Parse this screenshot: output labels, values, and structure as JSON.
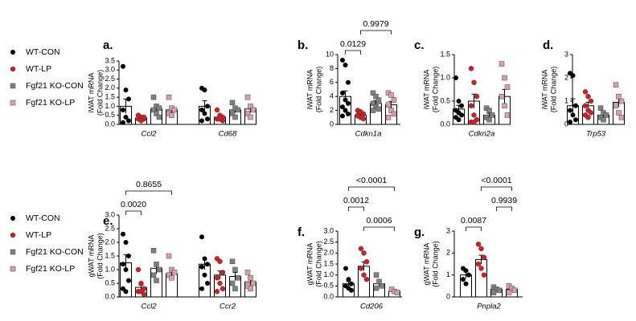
{
  "chart_data": [
    {
      "type": "bar",
      "title": "a.",
      "ylabel": [
        "iWAT mRNA",
        "(Fold Change)"
      ],
      "categories": [
        "Ccl2",
        "Cd68"
      ],
      "ylim": [
        0,
        3.5
      ],
      "yticks": [
        {
          "value": 0,
          "label": "0.0"
        },
        {
          "value": 0.5,
          "label": "0.5"
        },
        {
          "value": 1,
          "label": "1.0"
        },
        {
          "value": 1.5,
          "label": "1.5"
        },
        {
          "value": 2,
          "label": "2.0"
        },
        {
          "value": 2.5,
          "label": "2.5"
        },
        {
          "value": 3,
          "label": "3.0"
        },
        {
          "value": 3.5,
          "label": "3.5"
        }
      ],
      "series": [
        {
          "name": "WT-CON",
          "color": "#000000",
          "values": [
            1.0,
            1.0
          ],
          "errors": [
            0.4,
            0.3
          ],
          "points": [
            [
              3.2,
              1.9,
              1.4,
              0.8,
              0.4,
              0.2,
              0.1
            ],
            [
              2.0,
              1.9,
              1.0,
              0.8,
              0.6,
              0.3,
              0.2
            ]
          ]
        },
        {
          "name": "WT-LP",
          "color": "#c0262d",
          "values": [
            0.35,
            0.4
          ],
          "errors": [
            0.1,
            0.1
          ],
          "points": [
            [
              0.5,
              0.4,
              0.3,
              0.3,
              0.2,
              0.4,
              0.5
            ],
            [
              0.8,
              0.5,
              0.4,
              0.3,
              0.3,
              0.2
            ]
          ]
        },
        {
          "name": "Fgf21 KO-CON",
          "color": "#808080",
          "values": [
            0.85,
            0.8
          ],
          "errors": [
            0.15,
            0.15
          ],
          "points": [
            [
              1.5,
              1.0,
              0.9,
              0.8,
              0.6,
              0.4
            ],
            [
              1.2,
              0.9,
              0.8,
              0.6,
              0.4
            ]
          ]
        },
        {
          "name": "Fgf21 KO-LP",
          "color": "#d9a0a8",
          "values": [
            0.8,
            0.85
          ],
          "errors": [
            0.15,
            0.2
          ],
          "points": [
            [
              1.5,
              0.9,
              0.8,
              0.6,
              0.5
            ],
            [
              1.5,
              1.0,
              0.8,
              0.6,
              0.4
            ]
          ]
        }
      ]
    },
    {
      "type": "bar",
      "title": "b.",
      "ylabel": [
        "iWAT mRNA",
        "(Fold Change)"
      ],
      "categories": [
        "Cdkn1a"
      ],
      "ylim": [
        0,
        10
      ],
      "yticks": [
        0,
        2,
        4,
        6,
        8,
        10
      ],
      "series": [
        {
          "color": "#000000",
          "values": [
            4.0
          ],
          "errors": [
            0.8
          ],
          "points": [
            [
              9.2,
              8.5,
              6,
              4.5,
              3.5,
              3,
              2.5,
              2,
              1.5,
              1.2
            ]
          ]
        },
        {
          "color": "#c0262d",
          "values": [
            1.3
          ],
          "errors": [
            0.2
          ],
          "points": [
            [
              2,
              1.8,
              1.5,
              1.3,
              1.0,
              0.8,
              1.2
            ]
          ]
        },
        {
          "color": "#808080",
          "values": [
            3.0
          ],
          "errors": [
            0.4
          ],
          "points": [
            [
              4.5,
              4,
              3.5,
              3,
              2.5,
              2.2,
              2
            ]
          ]
        },
        {
          "color": "#d9a0a8",
          "values": [
            2.8
          ],
          "errors": [
            0.5
          ],
          "points": [
            [
              4.5,
              4.2,
              3.5,
              2.8,
              2,
              1.5,
              1
            ]
          ]
        }
      ],
      "annotations": [
        {
          "text": "0.0129",
          "groups": [
            0,
            1
          ]
        },
        {
          "text": "0.9979",
          "groups": [
            1,
            3
          ]
        }
      ]
    },
    {
      "type": "bar",
      "title": "c.",
      "ylabel": [
        "iWAT mRNA",
        "(Fold Change)"
      ],
      "categories": [
        "Cdkn2a"
      ],
      "ylim": [
        0,
        1.5
      ],
      "yticks": [
        {
          "value": 0,
          "label": "0.0"
        },
        {
          "value": 0.5,
          "label": "0.5"
        },
        {
          "value": 1,
          "label": "1.0"
        },
        {
          "value": 1.5,
          "label": "1.5"
        }
      ],
      "series": [
        {
          "color": "#000000",
          "values": [
            0.33
          ],
          "errors": [
            0.08
          ],
          "points": [
            [
              1.0,
              0.5,
              0.4,
              0.3,
              0.25,
              0.2,
              0.15,
              0.1
            ]
          ]
        },
        {
          "color": "#c0262d",
          "values": [
            0.5
          ],
          "errors": [
            0.15
          ],
          "points": [
            [
              1.2,
              0.9,
              0.6,
              0.4,
              0.2,
              0.1,
              0.05,
              0.05
            ]
          ]
        },
        {
          "color": "#808080",
          "values": [
            0.2
          ],
          "errors": [
            0.04
          ],
          "points": [
            [
              0.35,
              0.3,
              0.2,
              0.15,
              0.1
            ]
          ]
        },
        {
          "color": "#d9a0a8",
          "values": [
            0.6
          ],
          "errors": [
            0.15
          ],
          "points": [
            [
              1.3,
              1.0,
              0.8,
              0.6,
              0.4,
              0.2
            ]
          ]
        }
      ]
    },
    {
      "type": "bar",
      "title": "d.",
      "ylabel": [
        "iWAT mRNA",
        "(Fold Change)"
      ],
      "categories": [
        "Trp53"
      ],
      "ylim": [
        0,
        3
      ],
      "yticks": [
        0,
        1,
        2,
        3
      ],
      "series": [
        {
          "color": "#000000",
          "values": [
            0.8
          ],
          "errors": [
            0.3
          ],
          "points": [
            [
              2.2,
              2.1,
              0.8,
              0.6,
              0.4,
              0.2,
              0.1
            ]
          ]
        },
        {
          "color": "#c0262d",
          "values": [
            0.8
          ],
          "errors": [
            0.15
          ],
          "points": [
            [
              1.4,
              1.2,
              1.0,
              0.8,
              0.6,
              0.5,
              0.4,
              0.3
            ]
          ]
        },
        {
          "color": "#808080",
          "values": [
            0.4
          ],
          "errors": [
            0.1
          ],
          "points": [
            [
              0.7,
              0.5,
              0.4,
              0.3,
              0.2
            ]
          ]
        },
        {
          "color": "#d9a0a8",
          "values": [
            0.95
          ],
          "errors": [
            0.2
          ],
          "points": [
            [
              1.7,
              1.2,
              1.0,
              0.8,
              0.5,
              0.3
            ]
          ]
        }
      ]
    },
    {
      "type": "bar",
      "title": "e.",
      "ylabel": [
        "gWAT mRNA",
        "(Fold Change)"
      ],
      "categories": [
        "Ccl2",
        "Ccr2"
      ],
      "ylim": [
        0,
        3
      ],
      "yticks": [
        {
          "value": 0,
          "label": "0.0"
        },
        {
          "value": 0.5,
          "label": "0.5"
        },
        {
          "value": 1,
          "label": "1.0"
        },
        {
          "value": 1.5,
          "label": "1.5"
        },
        {
          "value": 2,
          "label": "2.0"
        },
        {
          "value": 2.5,
          "label": "2.5"
        },
        {
          "value": 3,
          "label": "3.0"
        }
      ],
      "series": [
        {
          "name": "WT-CON",
          "color": "#000000",
          "values": [
            1.25,
            1.2
          ],
          "errors": [
            0.3,
            0.2
          ],
          "points": [
            [
              2.3,
              2.0,
              1.5,
              1.2,
              1.0,
              0.6,
              0.3,
              0.2
            ],
            [
              2.2,
              1.4,
              1.2,
              1.1,
              0.8,
              0.5,
              0.3
            ]
          ]
        },
        {
          "name": "WT-LP",
          "color": "#c0262d",
          "values": [
            0.35,
            0.8
          ],
          "errors": [
            0.08,
            0.15
          ],
          "points": [
            [
              1.0,
              0.5,
              0.3,
              0.2,
              0.2,
              0.1
            ],
            [
              1.4,
              1.3,
              0.9,
              0.7,
              0.5,
              0.3,
              0.2
            ]
          ]
        },
        {
          "name": "Fgf21 KO-CON",
          "color": "#808080",
          "values": [
            1.05,
            0.75
          ],
          "errors": [
            0.2,
            0.15
          ],
          "points": [
            [
              1.7,
              1.2,
              1.0,
              0.8,
              0.6
            ],
            [
              1.3,
              1.0,
              0.7,
              0.5,
              0.3
            ]
          ]
        },
        {
          "name": "Fgf21 KO-LP",
          "color": "#d9a0a8",
          "values": [
            0.85,
            0.55
          ],
          "errors": [
            0.1,
            0.12
          ],
          "points": [
            [
              1.5,
              1.0,
              0.9,
              0.8,
              0.7
            ],
            [
              0.9,
              0.7,
              0.5,
              0.4,
              0.3
            ]
          ]
        }
      ],
      "annotations": [
        {
          "text": "0.0020",
          "groups": [
            0,
            1
          ]
        },
        {
          "text": "0.8655",
          "groups": [
            0,
            3
          ]
        }
      ]
    },
    {
      "type": "bar",
      "title": "f.",
      "ylabel": [
        "gWAT mRNA",
        "(Fold Change)"
      ],
      "categories": [
        "Cd206"
      ],
      "ylim": [
        0,
        3
      ],
      "yticks": [
        {
          "value": 0,
          "label": "0.0"
        },
        {
          "value": 0.5,
          "label": "0.5"
        },
        {
          "value": 1,
          "label": "1.0"
        },
        {
          "value": 1.5,
          "label": "1.5"
        },
        {
          "value": 2,
          "label": "2.0"
        },
        {
          "value": 2.5,
          "label": "2.5"
        },
        {
          "value": 3,
          "label": "3.0"
        }
      ],
      "series": [
        {
          "color": "#000000",
          "values": [
            0.6
          ],
          "errors": [
            0.1
          ],
          "points": [
            [
              1.3,
              0.8,
              0.6,
              0.5,
              0.4,
              0.3
            ]
          ]
        },
        {
          "color": "#c0262d",
          "values": [
            1.4
          ],
          "errors": [
            0.2
          ],
          "points": [
            [
              2.2,
              2.0,
              1.6,
              1.3,
              1.0,
              0.8
            ]
          ]
        },
        {
          "color": "#808080",
          "values": [
            0.6
          ],
          "errors": [
            0.1
          ],
          "points": [
            [
              1.0,
              0.7,
              0.5,
              0.4
            ]
          ]
        },
        {
          "color": "#d9a0a8",
          "values": [
            0.25
          ],
          "errors": [
            0.05
          ],
          "points": [
            [
              0.35,
              0.25,
              0.2
            ]
          ]
        }
      ],
      "annotations": [
        {
          "text": "0.0006",
          "groups": [
            1,
            3
          ]
        },
        {
          "text": "0.0012",
          "groups": [
            0,
            1
          ]
        },
        {
          "text": "<0.0001",
          "groups": [
            0,
            3
          ]
        }
      ]
    },
    {
      "type": "bar",
      "title": "g.",
      "ylabel": [
        "gWAT mRNA",
        "(Fold Change)"
      ],
      "categories": [
        "Pnpla2"
      ],
      "ylim": [
        0,
        3
      ],
      "yticks": [
        0,
        1,
        2,
        3
      ],
      "series": [
        {
          "color": "#000000",
          "values": [
            1.0
          ],
          "errors": [
            0.15
          ],
          "points": [
            [
              1.3,
              1.2,
              1.0,
              0.8,
              0.6
            ]
          ]
        },
        {
          "color": "#c0262d",
          "values": [
            1.7
          ],
          "errors": [
            0.2
          ],
          "points": [
            [
              2.4,
              2.2,
              1.8,
              1.5,
              1.3,
              1.0
            ]
          ]
        },
        {
          "color": "#808080",
          "values": [
            0.35
          ],
          "errors": [
            0.05
          ],
          "points": [
            [
              0.45,
              0.35,
              0.3,
              0.2
            ]
          ]
        },
        {
          "color": "#d9a0a8",
          "values": [
            0.35
          ],
          "errors": [
            0.06
          ],
          "points": [
            [
              0.5,
              0.4,
              0.3,
              0.2
            ]
          ]
        }
      ],
      "annotations": [
        {
          "text": "0.0087",
          "groups": [
            0,
            1
          ]
        },
        {
          "text": "0.9939",
          "groups": [
            2,
            3
          ]
        },
        {
          "text": "<0.0001",
          "groups": [
            1,
            3
          ]
        }
      ]
    }
  ]
}
